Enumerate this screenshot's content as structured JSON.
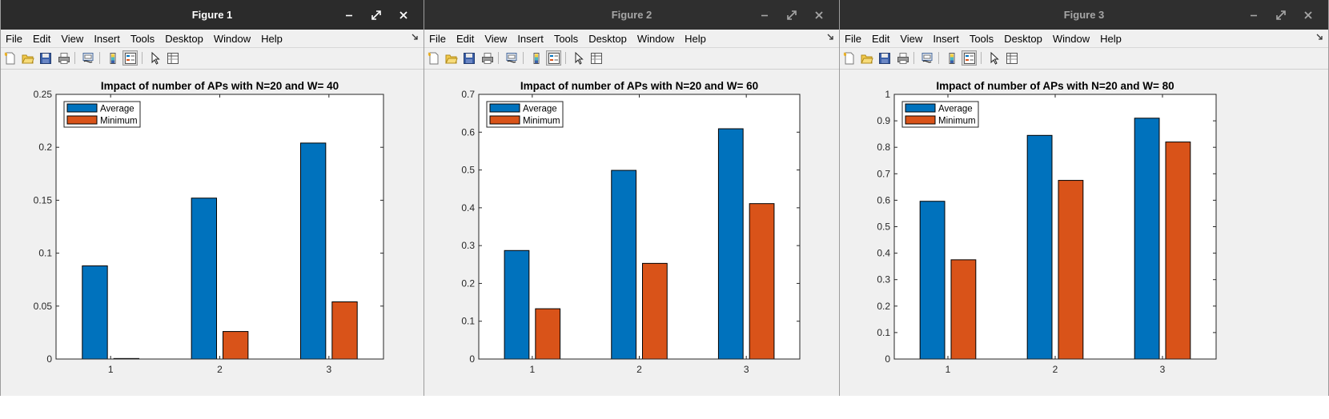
{
  "menu_labels": [
    "File",
    "Edit",
    "View",
    "Insert",
    "Tools",
    "Desktop",
    "Window",
    "Help"
  ],
  "toolbar_icons": [
    "new-figure-icon",
    "open-file-icon",
    "save-icon",
    "print-icon",
    "link-plot-icon",
    "insert-colorbar-icon",
    "insert-legend-icon",
    "edit-plot-arrow-icon",
    "property-inspector-icon"
  ],
  "colors": {
    "average": "#0072BD",
    "minimum": "#D95319",
    "titlebar": "#2b2b2b"
  },
  "windows": [
    {
      "title": "Figure 1",
      "active": true,
      "chart_data": {
        "type": "bar",
        "title": "Impact of number of APs with N=20 and W= 40",
        "categories": [
          "1",
          "2",
          "3"
        ],
        "series": [
          {
            "name": "Average",
            "values": [
              0.088,
              0.152,
              0.204
            ]
          },
          {
            "name": "Minimum",
            "values": [
              0.0005,
              0.026,
              0.054
            ]
          }
        ],
        "ylim": [
          0,
          0.25
        ],
        "yticks": [
          "0",
          "0.05",
          "0.1",
          "0.15",
          "0.2",
          "0.25"
        ],
        "legend": "top-left",
        "grid": false
      }
    },
    {
      "title": "Figure 2",
      "active": false,
      "chart_data": {
        "type": "bar",
        "title": "Impact of number of APs with N=20 and W= 60",
        "categories": [
          "1",
          "2",
          "3"
        ],
        "series": [
          {
            "name": "Average",
            "values": [
              0.287,
              0.499,
              0.609
            ]
          },
          {
            "name": "Minimum",
            "values": [
              0.133,
              0.253,
              0.411
            ]
          }
        ],
        "ylim": [
          0,
          0.7
        ],
        "yticks": [
          "0",
          "0.1",
          "0.2",
          "0.3",
          "0.4",
          "0.5",
          "0.6",
          "0.7"
        ],
        "legend": "top-left",
        "grid": false
      }
    },
    {
      "title": "Figure 3",
      "active": false,
      "chart_data": {
        "type": "bar",
        "title": "Impact of number of APs with N=20 and W= 80",
        "categories": [
          "1",
          "2",
          "3"
        ],
        "series": [
          {
            "name": "Average",
            "values": [
              0.596,
              0.845,
              0.91
            ]
          },
          {
            "name": "Minimum",
            "values": [
              0.375,
              0.675,
              0.82
            ]
          }
        ],
        "ylim": [
          0,
          1
        ],
        "yticks": [
          "0",
          "0.1",
          "0.2",
          "0.3",
          "0.4",
          "0.5",
          "0.6",
          "0.7",
          "0.8",
          "0.9",
          "1"
        ],
        "legend": "top-left",
        "grid": false
      }
    }
  ]
}
